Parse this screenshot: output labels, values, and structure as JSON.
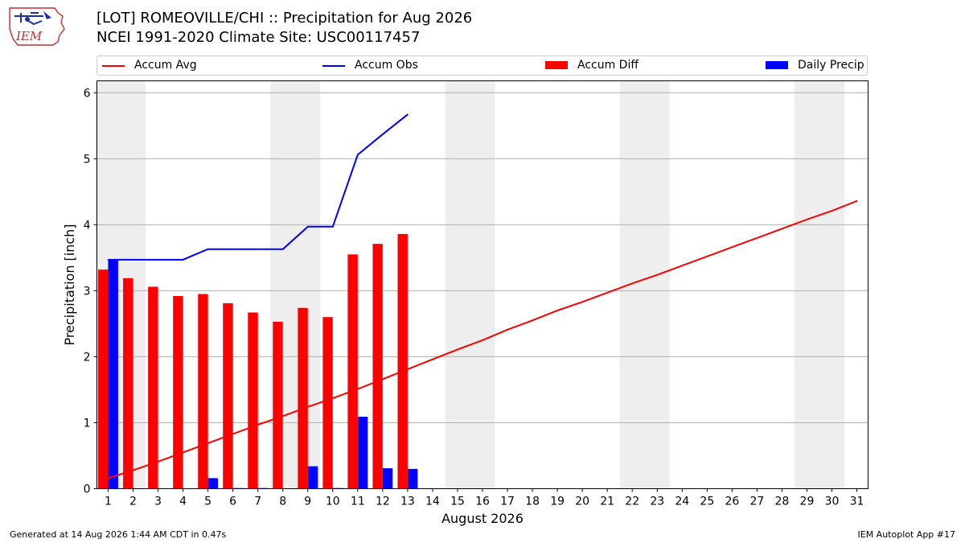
{
  "header": {
    "title_line1": "[LOT] ROMEOVILLE/CHI :: Precipitation for Aug 2026",
    "title_line2": "NCEI 1991-2020 Climate Site: USC00117457",
    "logo_text": "IEM"
  },
  "footer": {
    "left": "Generated at 14 Aug 2026 1:44 AM CDT in 0.47s",
    "right": "IEM Autoplot App #17"
  },
  "colors": {
    "avg": "#ff0000",
    "obs": "#0000ff",
    "diff": "#ff0000",
    "daily": "#0000ff",
    "weekend_shade": "#eeeeee",
    "grid": "#b0b0b0"
  },
  "chart_data": {
    "type": "bar",
    "xlabel": "August 2026",
    "ylabel": "Precipitation [inch]",
    "xlim": [
      0.55,
      31.45
    ],
    "ylim": [
      0,
      6.18
    ],
    "yticks": [
      0,
      1,
      2,
      3,
      4,
      5,
      6
    ],
    "x": [
      1,
      2,
      3,
      4,
      5,
      6,
      7,
      8,
      9,
      10,
      11,
      12,
      13,
      14,
      15,
      16,
      17,
      18,
      19,
      20,
      21,
      22,
      23,
      24,
      25,
      26,
      27,
      28,
      29,
      30,
      31
    ],
    "grid": "horizontal",
    "legend_position": "top",
    "weekend_spans": [
      [
        1,
        2
      ],
      [
        8,
        9
      ],
      [
        15,
        16
      ],
      [
        22,
        23
      ],
      [
        29,
        30
      ]
    ],
    "series": [
      {
        "name": "Accum Avg",
        "kind": "line",
        "x": [
          1,
          2,
          3,
          4,
          5,
          6,
          7,
          8,
          9,
          10,
          11,
          12,
          13,
          14,
          15,
          16,
          17,
          18,
          19,
          20,
          21,
          22,
          23,
          24,
          25,
          26,
          27,
          28,
          29,
          30,
          31
        ],
        "values": [
          0.16,
          0.28,
          0.41,
          0.55,
          0.69,
          0.83,
          0.97,
          1.1,
          1.24,
          1.37,
          1.51,
          1.66,
          1.81,
          1.96,
          2.11,
          2.25,
          2.41,
          2.55,
          2.7,
          2.83,
          2.97,
          3.11,
          3.24,
          3.38,
          3.52,
          3.66,
          3.8,
          3.94,
          4.08,
          4.21,
          4.36
        ]
      },
      {
        "name": "Accum Obs",
        "kind": "line",
        "x": [
          1,
          2,
          3,
          4,
          5,
          6,
          7,
          8,
          9,
          10,
          11,
          12,
          13
        ],
        "values": [
          3.47,
          3.47,
          3.47,
          3.47,
          3.63,
          3.63,
          3.63,
          3.63,
          3.97,
          3.97,
          5.06,
          5.37,
          5.67
        ]
      },
      {
        "name": "Accum Diff",
        "kind": "bar",
        "x": [
          1,
          2,
          3,
          4,
          5,
          6,
          7,
          8,
          9,
          10,
          11,
          12,
          13
        ],
        "values": [
          3.32,
          3.19,
          3.06,
          2.92,
          2.95,
          2.81,
          2.67,
          2.53,
          2.74,
          2.6,
          3.55,
          3.71,
          3.86
        ]
      },
      {
        "name": "Daily Precip",
        "kind": "bar",
        "x": [
          1,
          2,
          3,
          4,
          5,
          6,
          7,
          8,
          9,
          10,
          11,
          12,
          13
        ],
        "values": [
          3.47,
          0,
          0,
          0,
          0.16,
          0.01,
          0.01,
          0,
          0.34,
          0.01,
          1.09,
          0.31,
          0.3
        ]
      }
    ]
  }
}
